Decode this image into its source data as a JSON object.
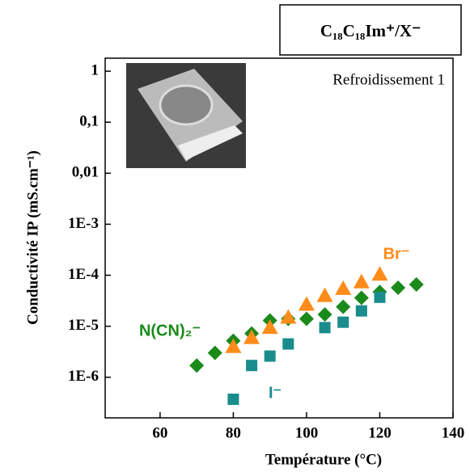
{
  "chart_data": {
    "type": "scatter",
    "box_title": "C₁₈C₁₈Im⁺/X⁻",
    "annotation": "Refroidissement 1",
    "x_label": "Température (°C)",
    "y_label": "Conductivité IP (mS.cm⁻¹)",
    "yscale": "log",
    "xlim": [
      45,
      140
    ],
    "xticks": [
      60,
      80,
      100,
      120,
      140
    ],
    "ylim": [
      1.6e-07,
      1.8
    ],
    "yticks": [
      1,
      {
        "value": 0.1,
        "label": "0,1"
      },
      {
        "value": 0.01,
        "label": "0,01"
      },
      {
        "value": 0.001,
        "label": "1E-3"
      },
      {
        "value": 0.0001,
        "label": "1E-4"
      },
      {
        "value": 1e-05,
        "label": "1E-5"
      },
      {
        "value": 1e-06,
        "label": "1E-6"
      }
    ],
    "series": [
      {
        "name": "N(CN)₂⁻",
        "color": "#1a8a1a",
        "marker": "diamond",
        "x": [
          70,
          75,
          80,
          85,
          90,
          95,
          100,
          105,
          110,
          115,
          120,
          125,
          130
        ],
        "values": [
          1.7e-06,
          3e-06,
          5.2e-06,
          7.2e-06,
          1.3e-05,
          1.4e-05,
          1.4e-05,
          1.7e-05,
          2.4e-05,
          3.6e-05,
          4.7e-05,
          5.7e-05,
          6.6e-05
        ]
      },
      {
        "name": "Br⁻",
        "color": "#ff8c1a",
        "marker": "triangle",
        "x": [
          80,
          85,
          90,
          95,
          100,
          105,
          110,
          115,
          120
        ],
        "values": [
          4e-06,
          6e-06,
          9.5e-06,
          1.5e-05,
          2.7e-05,
          4e-05,
          5.5e-05,
          7.4e-05,
          0.000105
        ]
      },
      {
        "name": "I⁻",
        "color": "#1a8c8c",
        "marker": "square",
        "x": [
          80,
          85,
          90,
          95,
          105,
          110,
          115,
          120
        ],
        "values": [
          3.7e-07,
          1.7e-06,
          2.6e-06,
          4.5e-06,
          9.4e-06,
          1.2e-05,
          2e-05,
          3.7e-05
        ]
      }
    ]
  }
}
